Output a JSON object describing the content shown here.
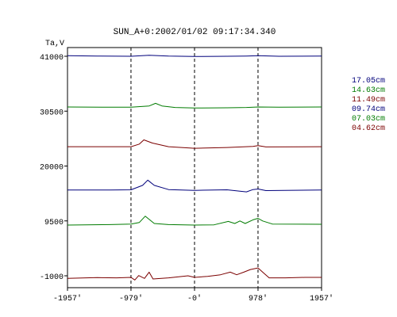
{
  "chart_data": {
    "type": "line",
    "title": "SUN_A+0:2002/01/02 09:17:34.340",
    "ylabel": "Ta,V",
    "xlabel": "",
    "x_range": [
      -1957,
      1957
    ],
    "y_range": [
      -3000,
      45000
    ],
    "x_ticks": [
      {
        "value": -1957,
        "label": "-1957'"
      },
      {
        "value": -979,
        "label": "-979'"
      },
      {
        "value": 0,
        "label": "-0'"
      },
      {
        "value": 978,
        "label": "978'"
      },
      {
        "value": 1957,
        "label": "1957'"
      }
    ],
    "y_ticks": [
      {
        "value": 41000,
        "label": "41000"
      },
      {
        "value": 30500,
        "label": "30500"
      },
      {
        "value": 20000,
        "label": "20000"
      },
      {
        "value": 9500,
        "label": "9500"
      },
      {
        "value": -1000,
        "label": "-1000"
      }
    ],
    "vertical_dashed_lines": [
      -979,
      0,
      978
    ],
    "grid": false,
    "legend_position": "right",
    "series": [
      {
        "name": "17.05cm",
        "color": "#00007b",
        "points": [
          [
            -1957,
            41100
          ],
          [
            -1500,
            41050
          ],
          [
            -979,
            41000
          ],
          [
            -700,
            41200
          ],
          [
            -400,
            41050
          ],
          [
            0,
            40950
          ],
          [
            500,
            41000
          ],
          [
            800,
            41050
          ],
          [
            978,
            41100
          ],
          [
            1300,
            41000
          ],
          [
            1957,
            41050
          ]
        ]
      },
      {
        "name": "14.63cm",
        "color": "#007b00",
        "points": [
          [
            -1957,
            31300
          ],
          [
            -1300,
            31250
          ],
          [
            -979,
            31250
          ],
          [
            -700,
            31500
          ],
          [
            -600,
            32000
          ],
          [
            -500,
            31500
          ],
          [
            -300,
            31200
          ],
          [
            0,
            31100
          ],
          [
            500,
            31150
          ],
          [
            800,
            31200
          ],
          [
            978,
            31300
          ],
          [
            1300,
            31250
          ],
          [
            1957,
            31300
          ]
        ]
      },
      {
        "name": "11.49cm",
        "color": "#7b0000",
        "points": [
          [
            -1957,
            23700
          ],
          [
            -1300,
            23700
          ],
          [
            -979,
            23700
          ],
          [
            -850,
            24200
          ],
          [
            -780,
            25000
          ],
          [
            -650,
            24400
          ],
          [
            -400,
            23700
          ],
          [
            0,
            23400
          ],
          [
            500,
            23550
          ],
          [
            900,
            23750
          ],
          [
            978,
            23900
          ],
          [
            1100,
            23650
          ],
          [
            1957,
            23700
          ]
        ]
      },
      {
        "name": "09.74cm",
        "color": "#00007b",
        "points": [
          [
            -1957,
            15400
          ],
          [
            -1300,
            15400
          ],
          [
            -979,
            15450
          ],
          [
            -800,
            16300
          ],
          [
            -720,
            17300
          ],
          [
            -620,
            16300
          ],
          [
            -400,
            15500
          ],
          [
            0,
            15350
          ],
          [
            500,
            15450
          ],
          [
            800,
            15050
          ],
          [
            900,
            15500
          ],
          [
            978,
            15600
          ],
          [
            1100,
            15300
          ],
          [
            1957,
            15400
          ]
        ]
      },
      {
        "name": "07.03cm",
        "color": "#007b00",
        "points": [
          [
            -1957,
            8700
          ],
          [
            -1300,
            8800
          ],
          [
            -979,
            8900
          ],
          [
            -850,
            9200
          ],
          [
            -760,
            10400
          ],
          [
            -700,
            9800
          ],
          [
            -620,
            9000
          ],
          [
            -400,
            8800
          ],
          [
            0,
            8700
          ],
          [
            300,
            8750
          ],
          [
            520,
            9400
          ],
          [
            620,
            9000
          ],
          [
            700,
            9500
          ],
          [
            780,
            9000
          ],
          [
            900,
            9700
          ],
          [
            978,
            10000
          ],
          [
            1050,
            9500
          ],
          [
            1200,
            8900
          ],
          [
            1957,
            8850
          ]
        ]
      },
      {
        "name": "04.62cm",
        "color": "#7b0000",
        "points": [
          [
            -1957,
            -1500
          ],
          [
            -1500,
            -1350
          ],
          [
            -1200,
            -1400
          ],
          [
            -979,
            -1300
          ],
          [
            -920,
            -1800
          ],
          [
            -860,
            -950
          ],
          [
            -770,
            -1500
          ],
          [
            -700,
            -300
          ],
          [
            -640,
            -1600
          ],
          [
            -400,
            -1400
          ],
          [
            -100,
            -1000
          ],
          [
            0,
            -1300
          ],
          [
            200,
            -1100
          ],
          [
            400,
            -800
          ],
          [
            550,
            -300
          ],
          [
            650,
            -800
          ],
          [
            760,
            -300
          ],
          [
            860,
            200
          ],
          [
            978,
            500
          ],
          [
            1050,
            -300
          ],
          [
            1150,
            -1400
          ],
          [
            1400,
            -1400
          ],
          [
            1700,
            -1300
          ],
          [
            1957,
            -1300
          ]
        ]
      }
    ]
  }
}
